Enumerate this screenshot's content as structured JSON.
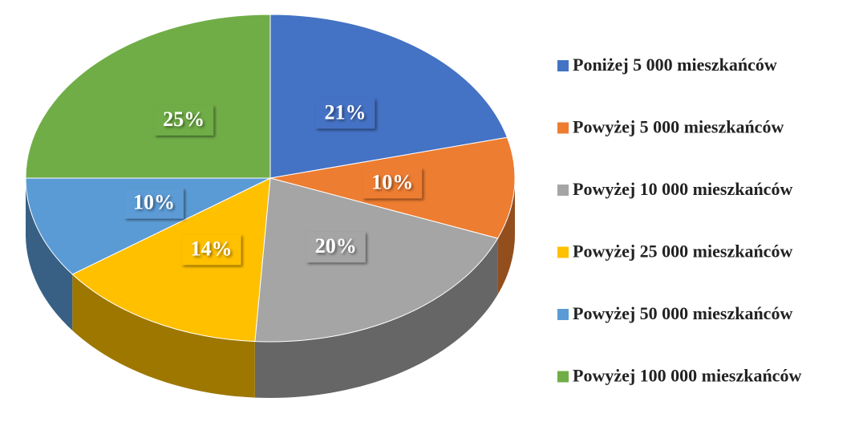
{
  "chart_data": {
    "type": "pie",
    "categories": [
      "Poniżej 5 000 mieszkańców",
      "Powyżej 5 000 mieszkańców",
      "Powyżej 10 000 mieszkańców",
      "Powyżej 25 000 mieszkańców",
      "Powyżej 50 000 mieszkańców",
      "Powyżej 100 000 mieszkańców"
    ],
    "values": [
      21,
      10,
      20,
      14,
      10,
      25
    ],
    "value_labels": [
      "21%",
      "10%",
      "20%",
      "14%",
      "10%",
      "25%"
    ],
    "colors": [
      "#4472c4",
      "#ed7d31",
      "#a5a5a5",
      "#ffc000",
      "#5b9bd5",
      "#70ad47"
    ],
    "legend": "right"
  }
}
